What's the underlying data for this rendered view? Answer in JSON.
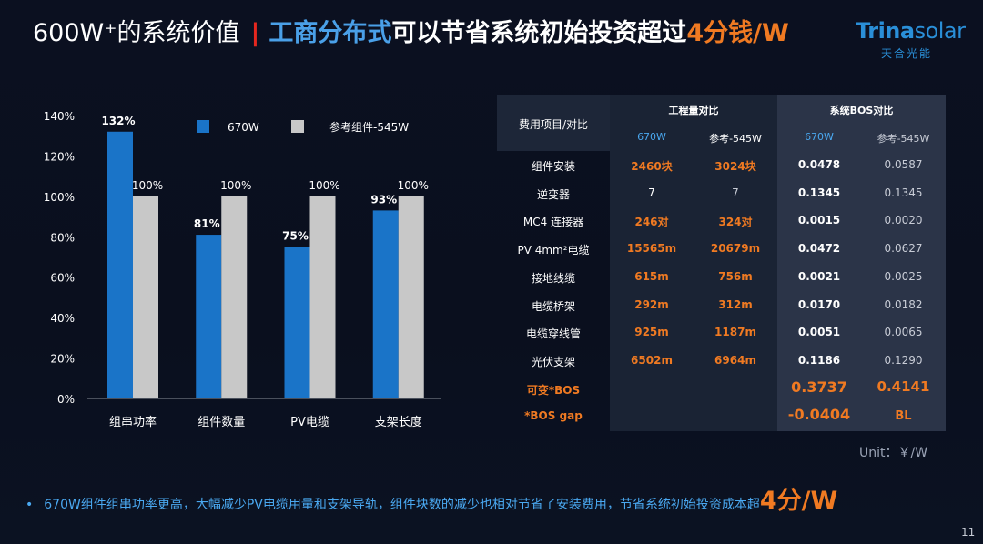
{
  "title": {
    "part1": "600W⁺的系统价值",
    "separator": "|",
    "part2": "工商分布式",
    "part3": "可以节省系统初始投资超过",
    "part4": "4分钱/W"
  },
  "logo": {
    "brand_bold": "Trina",
    "brand_light": "solar",
    "sub": "天合光能"
  },
  "chart_data": {
    "type": "bar",
    "categories": [
      "组串功率",
      "组件数量",
      "PV电缆",
      "支架长度"
    ],
    "series": [
      {
        "name": "670W",
        "values": [
          132,
          81,
          75,
          93
        ],
        "labels": [
          "132%",
          "81%",
          "75%",
          "93%"
        ],
        "color": "#1a74c8"
      },
      {
        "name": "参考组件-545W",
        "values": [
          100,
          100,
          100,
          100
        ],
        "labels": [
          "100%",
          "100%",
          "100%",
          "100%"
        ],
        "color": "#c8c8c8"
      }
    ],
    "ylim": [
      0,
      140
    ],
    "yticks": [
      "0%",
      "20%",
      "40%",
      "60%",
      "80%",
      "100%",
      "120%",
      "140%"
    ],
    "grid": false,
    "legend": "top"
  },
  "table": {
    "header_item": "费用项目/对比",
    "group1": "工程量对比",
    "group2": "系统BOS对比",
    "subheaders": [
      "670W",
      "参考-545W",
      "670W",
      "参考-545W"
    ],
    "rows": [
      {
        "item": "组件安装",
        "q670": "2460块",
        "q545": "3024块",
        "b670": "0.0478",
        "b545": "0.0587"
      },
      {
        "item": "逆变器",
        "q670": "7",
        "q545": "7",
        "b670": "0.1345",
        "b545": "0.1345"
      },
      {
        "item": "MC4 连接器",
        "q670": "246对",
        "q545": "324对",
        "b670": "0.0015",
        "b545": "0.0020"
      },
      {
        "item": "PV 4mm²电缆",
        "q670": "15565m",
        "q545": "20679m",
        "b670": "0.0472",
        "b545": "0.0627"
      },
      {
        "item": "接地线缆",
        "q670": "615m",
        "q545": "756m",
        "b670": "0.0021",
        "b545": "0.0025"
      },
      {
        "item": "电缆桥架",
        "q670": "292m",
        "q545": "312m",
        "b670": "0.0170",
        "b545": "0.0182"
      },
      {
        "item": "电缆穿线管",
        "q670": "925m",
        "q545": "1187m",
        "b670": "0.0051",
        "b545": "0.0065"
      },
      {
        "item": "光伏支架",
        "q670": "6502m",
        "q545": "6964m",
        "b670": "0.1186",
        "b545": "0.1290"
      }
    ],
    "summary": [
      {
        "item": "可变*BOS",
        "b670": "0.3737",
        "b545": "0.4141"
      },
      {
        "item": "*BOS gap",
        "b670": "-0.0404",
        "b545": "BL"
      }
    ]
  },
  "unit": "Unit：￥/W",
  "footer": {
    "bullet": "•",
    "text": "670W组件组串功率更高，大幅减少PV电缆用量和支架导轨，组件块数的减少也相对节省了安装费用，节省系统初始投资成本超",
    "highlight": "4分/W"
  },
  "page_number": "11",
  "colors": {
    "accent_orange": "#f07a22",
    "accent_blue": "#4aa0e8",
    "red": "#e5271f"
  }
}
